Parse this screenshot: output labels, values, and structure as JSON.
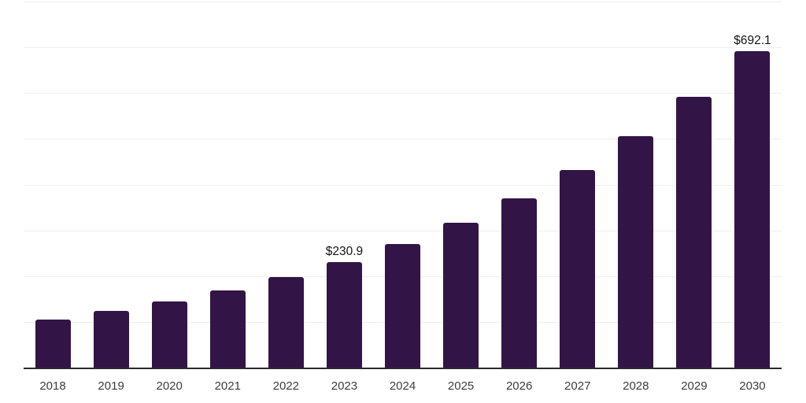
{
  "chart_data": {
    "type": "bar",
    "title": "",
    "xlabel": "",
    "ylabel": "",
    "categories": [
      "2018",
      "2019",
      "2020",
      "2021",
      "2022",
      "2023",
      "2024",
      "2025",
      "2026",
      "2027",
      "2028",
      "2029",
      "2030"
    ],
    "values": [
      105.4,
      123.3,
      144.3,
      168.7,
      197.4,
      230.9,
      270.1,
      316.0,
      369.6,
      432.4,
      505.8,
      591.6,
      692.1
    ],
    "data_labels": [
      "",
      "",
      "",
      "",
      "",
      "$230.9",
      "",
      "",
      "",
      "",
      "",
      "",
      "$692.1"
    ],
    "ylim": [
      0,
      800
    ],
    "grid_step": 100,
    "grid": "horizontal-only",
    "legend": "none",
    "currency_prefix": "$",
    "colors": {
      "bar": "#331447",
      "gridline": "#efefef",
      "axis": "#2b2b2b",
      "tick_label": "#3d3d3d",
      "data_label": "#141414",
      "background": "#ffffff"
    }
  }
}
